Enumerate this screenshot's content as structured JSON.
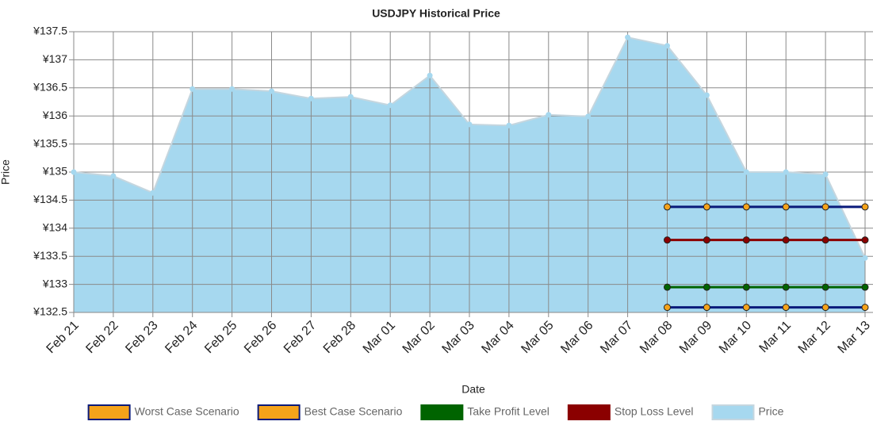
{
  "chart_data": {
    "type": "area",
    "title": "USDJPY  Historical Price",
    "x_label": "Date",
    "y_label": "Price",
    "categories": [
      "Feb 21",
      "Feb 22",
      "Feb 23",
      "Feb 24",
      "Feb 25",
      "Feb 26",
      "Feb 27",
      "Feb 28",
      "Mar 01",
      "Mar 02",
      "Mar 03",
      "Mar 04",
      "Mar 05",
      "Mar 06",
      "Mar 07",
      "Mar 08",
      "Mar 09",
      "Mar 10",
      "Mar 11",
      "Mar 12",
      "Mar 13"
    ],
    "ylim": [
      132.5,
      137.5
    ],
    "yticks": [
      {
        "value": 132.5,
        "label": "¥132.5"
      },
      {
        "value": 133,
        "label": "¥133"
      },
      {
        "value": 133.5,
        "label": "¥133.5"
      },
      {
        "value": 134,
        "label": "¥134"
      },
      {
        "value": 134.5,
        "label": "¥134.5"
      },
      {
        "value": 135,
        "label": "¥135"
      },
      {
        "value": 135.5,
        "label": "¥135.5"
      },
      {
        "value": 136,
        "label": "¥136"
      },
      {
        "value": 136.5,
        "label": "¥136.5"
      },
      {
        "value": 137,
        "label": "¥137"
      },
      {
        "value": 137.5,
        "label": "¥137.5"
      }
    ],
    "grid": true,
    "series": [
      {
        "name": "Worst Case Scenario",
        "color": "#0a1a7a",
        "marker_color": "#f5a31a",
        "values": [
          null,
          null,
          null,
          null,
          null,
          null,
          null,
          null,
          null,
          null,
          null,
          null,
          null,
          null,
          null,
          132.59,
          132.59,
          132.59,
          132.59,
          132.59,
          132.59
        ]
      },
      {
        "name": "Best Case Scenario",
        "color": "#0a1a7a",
        "marker_color": "#f5a31a",
        "values": [
          null,
          null,
          null,
          null,
          null,
          null,
          null,
          null,
          null,
          null,
          null,
          null,
          null,
          null,
          null,
          134.38,
          134.38,
          134.38,
          134.38,
          134.38,
          134.38
        ]
      },
      {
        "name": "Take Profit Level",
        "color": "#006400",
        "marker_color": "#006400",
        "values": [
          null,
          null,
          null,
          null,
          null,
          null,
          null,
          null,
          null,
          null,
          null,
          null,
          null,
          null,
          null,
          132.95,
          132.95,
          132.95,
          132.95,
          132.95,
          132.95
        ]
      },
      {
        "name": "Stop Loss Level",
        "color": "#8b0000",
        "marker_color": "#8b0000",
        "values": [
          null,
          null,
          null,
          null,
          null,
          null,
          null,
          null,
          null,
          null,
          null,
          null,
          null,
          null,
          null,
          133.79,
          133.79,
          133.79,
          133.79,
          133.79,
          133.79
        ]
      },
      {
        "name": "Price",
        "color": "#a6d8ef",
        "values": [
          135.0,
          134.93,
          134.63,
          136.48,
          136.48,
          136.44,
          136.31,
          136.34,
          136.19,
          136.72,
          135.85,
          135.83,
          136.02,
          135.99,
          137.4,
          137.25,
          136.37,
          135.0,
          135.0,
          134.96,
          133.47
        ]
      }
    ]
  }
}
